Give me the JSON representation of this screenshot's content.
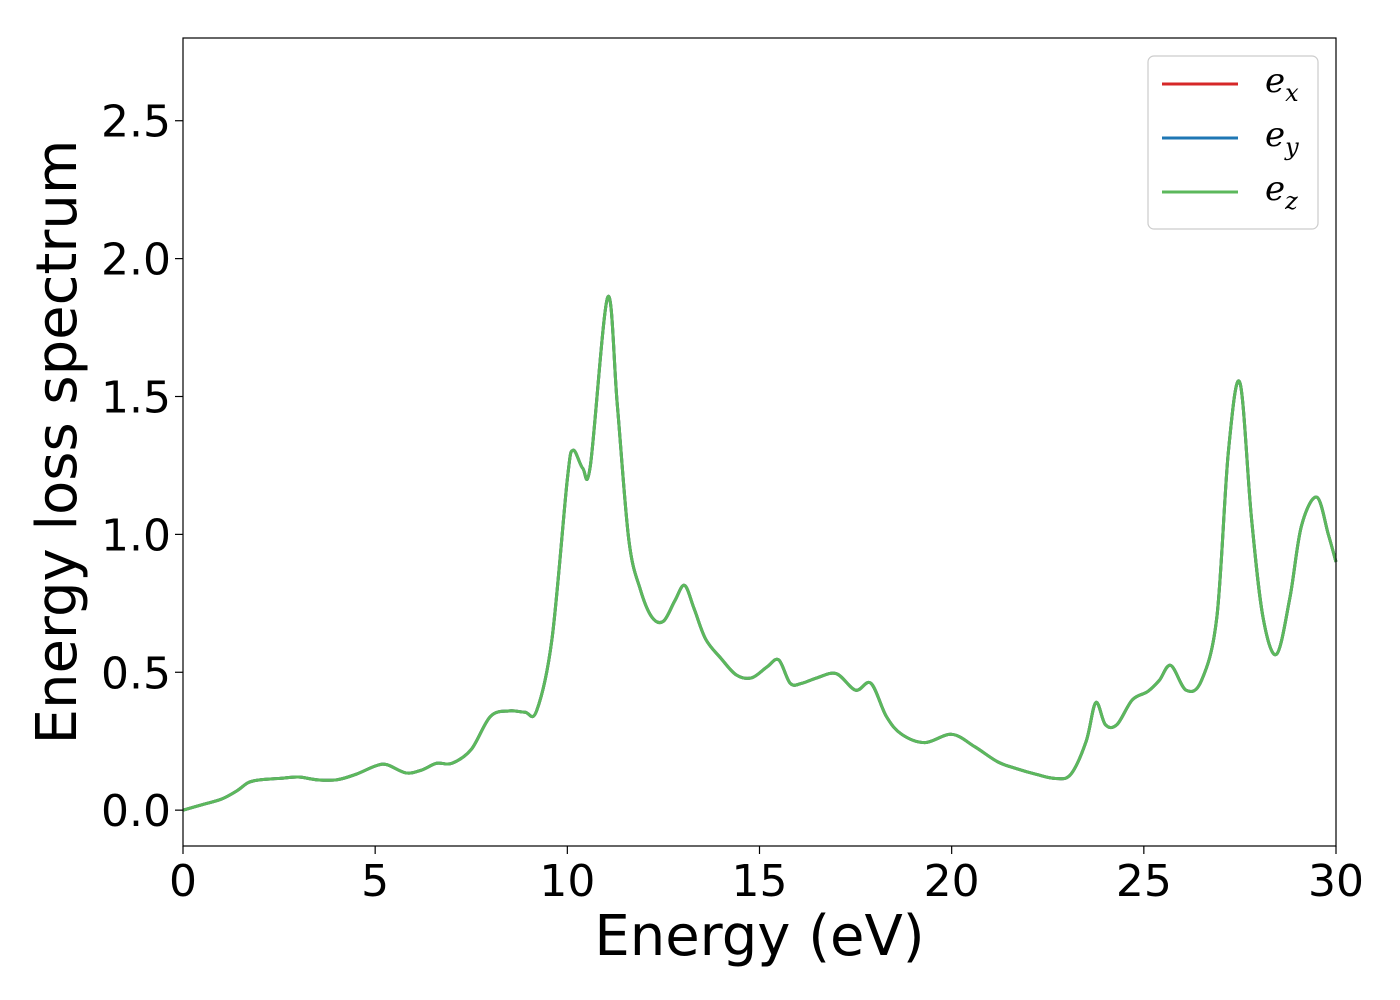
{
  "chart_data": {
    "type": "line",
    "title": "",
    "xlabel": "Energy (eV)",
    "ylabel": "Energy loss spectrum",
    "xlim": [
      0,
      30
    ],
    "ylim": [
      -0.13,
      2.8
    ],
    "xticks": [
      0,
      5,
      10,
      15,
      20,
      25,
      30
    ],
    "xtick_labels": [
      "0",
      "5",
      "10",
      "15",
      "20",
      "25",
      "30"
    ],
    "yticks": [
      0.0,
      0.5,
      1.0,
      1.5,
      2.0,
      2.5
    ],
    "ytick_labels": [
      "0.0",
      "0.5",
      "1.0",
      "1.5",
      "2.0",
      "2.5"
    ],
    "grid": false,
    "legend_position": "top-right",
    "x": [
      0.0,
      0.5,
      1.0,
      1.4,
      1.7,
      2.0,
      2.5,
      3.0,
      3.5,
      4.0,
      4.5,
      5.0,
      5.3,
      5.8,
      6.2,
      6.6,
      7.0,
      7.5,
      8.0,
      8.5,
      8.9,
      9.2,
      9.6,
      10.0,
      10.15,
      10.4,
      10.6,
      11.05,
      11.3,
      11.6,
      11.9,
      12.2,
      12.5,
      12.8,
      13.05,
      13.3,
      13.6,
      14.0,
      14.4,
      14.8,
      15.2,
      15.5,
      15.8,
      16.1,
      16.5,
      17.0,
      17.5,
      17.9,
      18.3,
      18.7,
      19.3,
      20.0,
      20.6,
      21.2,
      21.7,
      22.2,
      22.7,
      23.1,
      23.5,
      23.75,
      24.0,
      24.3,
      24.7,
      25.1,
      25.4,
      25.7,
      26.1,
      26.5,
      26.9,
      27.2,
      27.5,
      27.8,
      28.1,
      28.45,
      28.8,
      29.1,
      29.5,
      29.8,
      30.0
    ],
    "series": [
      {
        "name": "e_x",
        "color": "#d62728",
        "values": [
          0.0,
          0.02,
          0.04,
          0.07,
          0.1,
          0.11,
          0.115,
          0.12,
          0.11,
          0.11,
          0.13,
          0.16,
          0.165,
          0.135,
          0.145,
          0.17,
          0.17,
          0.22,
          0.34,
          0.36,
          0.355,
          0.36,
          0.62,
          1.2,
          1.305,
          1.24,
          1.25,
          1.86,
          1.47,
          0.98,
          0.8,
          0.7,
          0.685,
          0.76,
          0.815,
          0.73,
          0.62,
          0.55,
          0.49,
          0.48,
          0.52,
          0.545,
          0.46,
          0.46,
          0.48,
          0.495,
          0.435,
          0.46,
          0.34,
          0.275,
          0.245,
          0.275,
          0.23,
          0.175,
          0.15,
          0.13,
          0.115,
          0.13,
          0.25,
          0.39,
          0.31,
          0.31,
          0.4,
          0.43,
          0.47,
          0.525,
          0.435,
          0.47,
          0.7,
          1.3,
          1.55,
          1.06,
          0.7,
          0.565,
          0.77,
          1.03,
          1.135,
          1.0,
          0.9
        ]
      },
      {
        "name": "e_y",
        "color": "#1f77b4",
        "values": [
          0.0,
          0.02,
          0.04,
          0.07,
          0.1,
          0.11,
          0.115,
          0.12,
          0.11,
          0.11,
          0.13,
          0.16,
          0.165,
          0.135,
          0.145,
          0.17,
          0.17,
          0.22,
          0.34,
          0.36,
          0.355,
          0.36,
          0.62,
          1.2,
          1.305,
          1.24,
          1.25,
          1.86,
          1.47,
          0.98,
          0.8,
          0.7,
          0.685,
          0.76,
          0.815,
          0.73,
          0.62,
          0.55,
          0.49,
          0.48,
          0.52,
          0.545,
          0.46,
          0.46,
          0.48,
          0.495,
          0.435,
          0.46,
          0.34,
          0.275,
          0.245,
          0.275,
          0.23,
          0.175,
          0.15,
          0.13,
          0.115,
          0.13,
          0.25,
          0.39,
          0.31,
          0.31,
          0.4,
          0.43,
          0.47,
          0.525,
          0.435,
          0.47,
          0.7,
          1.3,
          1.55,
          1.06,
          0.7,
          0.565,
          0.77,
          1.03,
          1.135,
          1.0,
          0.9
        ]
      },
      {
        "name": "e_z",
        "color": "#5cb85c",
        "values": [
          0.0,
          0.02,
          0.04,
          0.07,
          0.1,
          0.11,
          0.115,
          0.12,
          0.11,
          0.11,
          0.13,
          0.16,
          0.165,
          0.135,
          0.145,
          0.17,
          0.17,
          0.22,
          0.34,
          0.36,
          0.355,
          0.36,
          0.62,
          1.2,
          1.305,
          1.24,
          1.25,
          1.86,
          1.47,
          0.98,
          0.8,
          0.7,
          0.685,
          0.76,
          0.815,
          0.73,
          0.62,
          0.55,
          0.49,
          0.48,
          0.52,
          0.545,
          0.46,
          0.46,
          0.48,
          0.495,
          0.435,
          0.46,
          0.34,
          0.275,
          0.245,
          0.275,
          0.23,
          0.175,
          0.15,
          0.13,
          0.115,
          0.13,
          0.25,
          0.39,
          0.31,
          0.31,
          0.4,
          0.43,
          0.47,
          0.525,
          0.435,
          0.47,
          0.7,
          1.3,
          1.55,
          1.06,
          0.7,
          0.565,
          0.77,
          1.03,
          1.135,
          1.0,
          0.9
        ]
      }
    ],
    "legend": [
      {
        "base": "e",
        "sub": "x",
        "color": "#d62728"
      },
      {
        "base": "e",
        "sub": "y",
        "color": "#1f77b4"
      },
      {
        "base": "e",
        "sub": "z",
        "color": "#5cb85c"
      }
    ]
  }
}
